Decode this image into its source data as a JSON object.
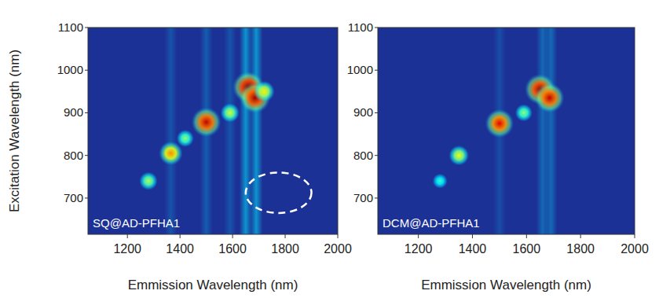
{
  "chart_data": [
    {
      "type": "heatmap",
      "title": "SQ@AD-PFHA1",
      "x_label": "Emmission Wavelength (nm)",
      "y_label": "Excitation Wavelength (nm)",
      "xlim": [
        1050,
        2000
      ],
      "ylim": [
        615,
        1100
      ],
      "xticks": [
        1200,
        1400,
        1600,
        1800,
        2000
      ],
      "yticks": [
        700,
        800,
        900,
        1000,
        1100
      ],
      "spots": {
        "x": [
          1660,
          1685,
          1500,
          1365,
          1280,
          1590,
          1420,
          1720
        ],
        "y": [
          960,
          935,
          878,
          805,
          740,
          900,
          840,
          950
        ],
        "values": [
          1.0,
          0.95,
          0.9,
          0.6,
          0.3,
          0.35,
          0.25,
          0.45
        ]
      },
      "streaks": {
        "x": [
          1650,
          1690,
          1500,
          1365,
          1590
        ],
        "values": [
          0.35,
          0.35,
          0.15,
          0.12,
          0.12
        ]
      },
      "highlight": {
        "x": [
          1650,
          1900
        ],
        "y": [
          665,
          760
        ]
      }
    },
    {
      "type": "heatmap",
      "title": "DCM@AD-PFHA1",
      "x_label": "Emmission Wavelength (nm)",
      "xlim": [
        1050,
        2000
      ],
      "ylim": [
        615,
        1100
      ],
      "xticks": [
        1200,
        1400,
        1600,
        1800,
        2000
      ],
      "yticks": [
        700,
        800,
        900,
        1000,
        1100
      ],
      "spots": {
        "x": [
          1650,
          1685,
          1500,
          1350,
          1590,
          1280
        ],
        "y": [
          955,
          935,
          875,
          800,
          900,
          740
        ],
        "values": [
          0.95,
          0.9,
          0.85,
          0.4,
          0.25,
          0.12
        ]
      },
      "streaks": {
        "x": [
          1660,
          1690,
          1500
        ],
        "values": [
          0.2,
          0.2,
          0.1
        ]
      }
    }
  ]
}
